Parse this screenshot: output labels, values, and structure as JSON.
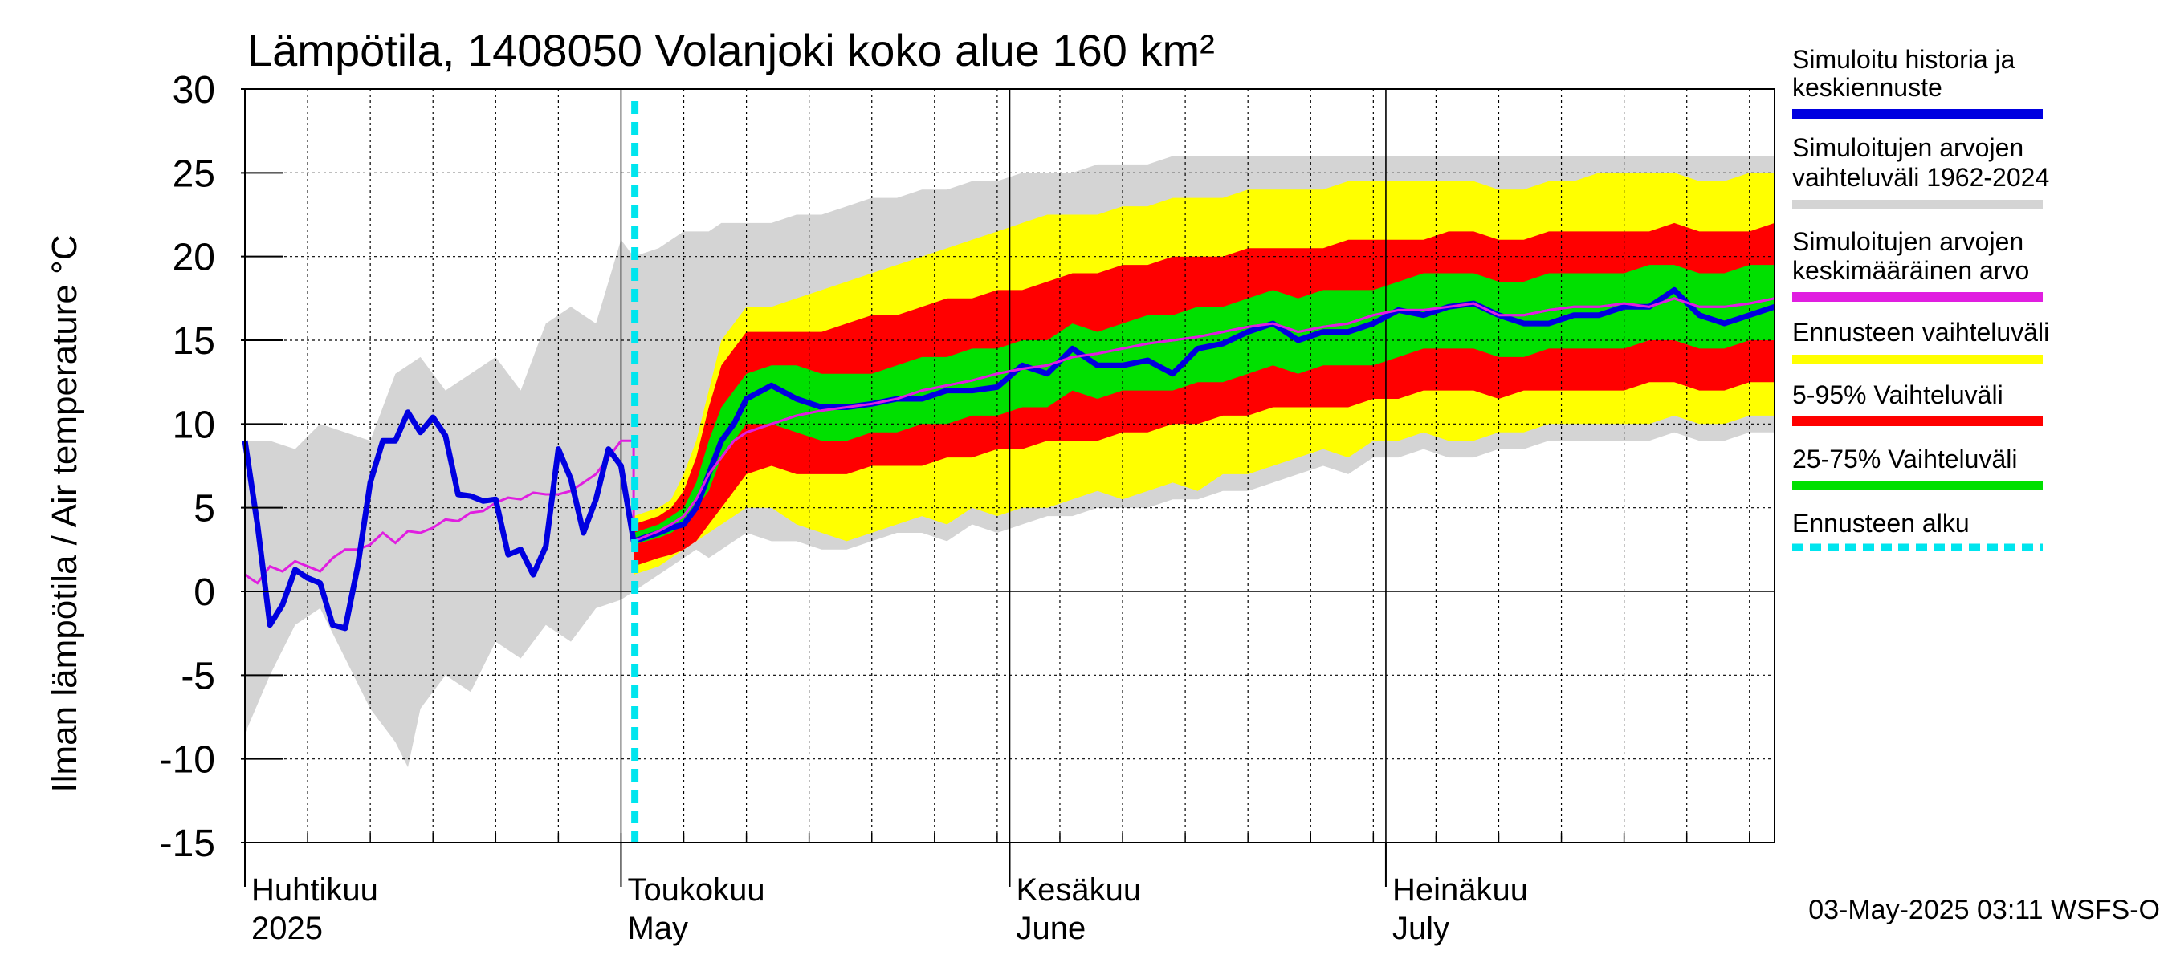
{
  "chart_data": {
    "type": "area",
    "title": "Lämpötila, 1408050 Volanjoki koko alue 160 km²",
    "ylabel": "Ilman lämpötila / Air temperature   °C",
    "ylim": [
      -15,
      30
    ],
    "yticks": [
      30,
      25,
      20,
      15,
      10,
      5,
      0,
      -5,
      -10,
      -15
    ],
    "x_range_days": [
      0,
      122
    ],
    "months": [
      {
        "day": 0,
        "fi": "Huhtikuu",
        "en": "2025"
      },
      {
        "day": 30,
        "fi": "Toukokuu",
        "en": "May"
      },
      {
        "day": 61,
        "fi": "Kesäkuu",
        "en": "June"
      },
      {
        "day": 91,
        "fi": "Heinäkuu",
        "en": "July"
      }
    ],
    "forecast_start_day": 31.1,
    "footer": "03-May-2025 03:11 WSFS-O",
    "legend": [
      {
        "line1": "Simuloitu historia ja",
        "line2": "keskiennuste",
        "color": "#0000e0",
        "dashed": false
      },
      {
        "line1": "Simuloitujen arvojen",
        "line2": "vaihteluväli 1962-2024",
        "color": "#d4d4d4",
        "dashed": false
      },
      {
        "line1": "Simuloitujen arvojen",
        "line2": "keskimääräinen arvo",
        "color": "#e01ee0",
        "dashed": false
      },
      {
        "line1": "Ennusteen vaihteluväli",
        "line2": "",
        "color": "#ffff00",
        "dashed": false
      },
      {
        "line1": "5-95% Vaihteluväli",
        "line2": "",
        "color": "#ff0000",
        "dashed": false
      },
      {
        "line1": "25-75% Vaihteluväli",
        "line2": "",
        "color": "#00e000",
        "dashed": false
      },
      {
        "line1": "Ennusteen alku",
        "line2": "",
        "color": "#00e5ee",
        "dashed": true
      }
    ],
    "series": {
      "history_range_lower": [
        [
          0,
          -8.5
        ],
        [
          2,
          -5
        ],
        [
          4,
          -2
        ],
        [
          6,
          -1
        ],
        [
          8,
          -4
        ],
        [
          10,
          -7
        ],
        [
          12,
          -9
        ],
        [
          13,
          -10.5
        ],
        [
          14,
          -7
        ],
        [
          16,
          -5
        ],
        [
          18,
          -6
        ],
        [
          20,
          -3
        ],
        [
          22,
          -4
        ],
        [
          24,
          -2
        ],
        [
          26,
          -3
        ],
        [
          28,
          -1
        ],
        [
          30,
          -0.5
        ],
        [
          31,
          0
        ]
      ],
      "history_range_upper": [
        [
          0,
          9
        ],
        [
          2,
          9
        ],
        [
          4,
          8.5
        ],
        [
          6,
          10
        ],
        [
          8,
          9.5
        ],
        [
          10,
          9
        ],
        [
          12,
          13
        ],
        [
          14,
          14
        ],
        [
          16,
          12
        ],
        [
          18,
          13
        ],
        [
          20,
          14
        ],
        [
          22,
          12
        ],
        [
          24,
          16
        ],
        [
          26,
          17
        ],
        [
          28,
          16
        ],
        [
          30,
          21
        ],
        [
          31,
          20
        ]
      ],
      "history_mean": [
        [
          0,
          1
        ],
        [
          1,
          0.5
        ],
        [
          2,
          1.5
        ],
        [
          3,
          1.2
        ],
        [
          4,
          1.8
        ],
        [
          5,
          1.5
        ],
        [
          6,
          1.2
        ],
        [
          7,
          2
        ],
        [
          8,
          2.5
        ],
        [
          9,
          2.5
        ],
        [
          10,
          2.8
        ],
        [
          11,
          3.5
        ],
        [
          12,
          2.9
        ],
        [
          13,
          3.6
        ],
        [
          14,
          3.5
        ],
        [
          15,
          3.8
        ],
        [
          16,
          4.3
        ],
        [
          17,
          4.2
        ],
        [
          18,
          4.7
        ],
        [
          19,
          4.8
        ],
        [
          20,
          5.3
        ],
        [
          21,
          5.6
        ],
        [
          22,
          5.5
        ],
        [
          23,
          5.9
        ],
        [
          24,
          5.8
        ],
        [
          25,
          5.8
        ],
        [
          26,
          6
        ],
        [
          27,
          6.5
        ],
        [
          28,
          7
        ],
        [
          29,
          8
        ],
        [
          30,
          9
        ],
        [
          31,
          9
        ]
      ],
      "simulated_history": [
        [
          0,
          9
        ],
        [
          1,
          4
        ],
        [
          2,
          -2
        ],
        [
          3,
          -0.8
        ],
        [
          4,
          1.3
        ],
        [
          5,
          0.8
        ],
        [
          6,
          0.5
        ],
        [
          7,
          -2
        ],
        [
          8,
          -2.2
        ],
        [
          9,
          1.5
        ],
        [
          10,
          6.5
        ],
        [
          11,
          9
        ],
        [
          12,
          9
        ],
        [
          13,
          10.7
        ],
        [
          14,
          9.5
        ],
        [
          15,
          10.4
        ],
        [
          16,
          9.3
        ],
        [
          17,
          5.8
        ],
        [
          18,
          5.7
        ],
        [
          19,
          5.4
        ],
        [
          20,
          5.5
        ],
        [
          21,
          2.2
        ],
        [
          22,
          2.5
        ],
        [
          23,
          1
        ],
        [
          24,
          2.7
        ],
        [
          25,
          8.5
        ],
        [
          26,
          6.7
        ],
        [
          27,
          3.5
        ],
        [
          28,
          5.5
        ],
        [
          29,
          8.5
        ],
        [
          30,
          7.5
        ],
        [
          31,
          3
        ]
      ],
      "forecast_days": [
        31,
        33,
        34,
        35,
        36,
        37,
        38,
        39,
        40,
        42,
        44,
        46,
        48,
        50,
        52,
        54,
        56,
        58,
        60,
        62,
        64,
        66,
        68,
        70,
        72,
        74,
        76,
        78,
        80,
        82,
        84,
        86,
        88,
        90,
        92,
        94,
        96,
        98,
        100,
        102,
        104,
        106,
        108,
        110,
        112,
        114,
        116,
        118,
        120,
        122
      ],
      "forecast_median": [
        3,
        3.5,
        3.8,
        4,
        5,
        7,
        9,
        10,
        11.5,
        12.3,
        11.5,
        11,
        11,
        11.2,
        11.5,
        11.5,
        12,
        12,
        12.2,
        13.5,
        13,
        14.5,
        13.5,
        13.5,
        13.8,
        13,
        14.5,
        14.8,
        15.5,
        16,
        15,
        15.5,
        15.5,
        16,
        16.8,
        16.5,
        17,
        17.2,
        16.5,
        16,
        16,
        16.5,
        16.5,
        17,
        17,
        18,
        16.5,
        16,
        16.5,
        17
      ],
      "forecast_mean": [
        3,
        3.6,
        4,
        4.5,
        5.5,
        7,
        8,
        9,
        9.5,
        10,
        10.5,
        10.8,
        11,
        11.2,
        11.5,
        12,
        12.3,
        12.6,
        13,
        13.3,
        13.5,
        14,
        14.2,
        14.5,
        14.8,
        15,
        15.2,
        15.5,
        15.8,
        16,
        15.5,
        15.8,
        16,
        16.5,
        16.8,
        16.8,
        17,
        17.2,
        16.5,
        16.5,
        16.8,
        17,
        17,
        17.2,
        17,
        17.5,
        17,
        17,
        17.2,
        17.5
      ],
      "p25": [
        2.8,
        3.2,
        3.5,
        4,
        5,
        6,
        8,
        9,
        10,
        10,
        9.5,
        9,
        9,
        9.5,
        9.5,
        10,
        10,
        10.5,
        10.5,
        11,
        11,
        12,
        11.5,
        12,
        12,
        12,
        12.5,
        12.5,
        13,
        13.5,
        13,
        13.5,
        13.5,
        13.5,
        14,
        14.5,
        14.5,
        14.5,
        14,
        14,
        14.5,
        14.5,
        14.5,
        14.5,
        15,
        15,
        14.5,
        14.5,
        15,
        15
      ],
      "p75": [
        3.5,
        4,
        4.5,
        5,
        6.5,
        9,
        11,
        12,
        13,
        13.5,
        13.5,
        13,
        13,
        13,
        13.5,
        14,
        14,
        14.5,
        14.5,
        15,
        15,
        16,
        15.5,
        16,
        16.5,
        16.5,
        17,
        17,
        17.5,
        18,
        17.5,
        18,
        18,
        18,
        18.5,
        19,
        19,
        19,
        18.5,
        18.5,
        19,
        19,
        19,
        19,
        19.5,
        19.5,
        19,
        19,
        19.5,
        19.5
      ],
      "p5": [
        1.5,
        2,
        2.2,
        2.5,
        3,
        4,
        5,
        6,
        7,
        7.5,
        7,
        7,
        7,
        7.5,
        7.5,
        7.5,
        8,
        8,
        8.5,
        8.5,
        9,
        9,
        9,
        9.5,
        9.5,
        10,
        10,
        10.5,
        10.5,
        11,
        11,
        11,
        11,
        11.5,
        11.5,
        12,
        12,
        12,
        11.5,
        12,
        12,
        12,
        12,
        12,
        12.5,
        12.5,
        12,
        12,
        12.5,
        12.5
      ],
      "p95": [
        4,
        4.5,
        5,
        6,
        8,
        11,
        13.5,
        14.5,
        15.5,
        15.5,
        15.5,
        15.5,
        16,
        16.5,
        16.5,
        17,
        17.5,
        17.5,
        18,
        18,
        18.5,
        19,
        19,
        19.5,
        19.5,
        20,
        20,
        20,
        20.5,
        20.5,
        20.5,
        20.5,
        21,
        21,
        21,
        21,
        21.5,
        21.5,
        21,
        21,
        21.5,
        21.5,
        21.5,
        21.5,
        21.5,
        22,
        21.5,
        21.5,
        21.5,
        22
      ],
      "range_min": [
        1,
        1.5,
        2,
        2.5,
        3,
        3.5,
        4,
        4.5,
        5,
        5,
        4,
        3.5,
        3,
        3.5,
        4,
        4.5,
        4,
        5,
        4.5,
        5,
        5,
        5.5,
        6,
        5.5,
        6,
        6.5,
        6,
        7,
        7,
        7.5,
        8,
        8.5,
        8,
        9,
        9,
        9.5,
        9,
        9,
        9.5,
        9.5,
        10,
        10,
        10,
        10,
        10,
        10.5,
        10,
        10,
        10.5,
        10.5
      ],
      "range_max": [
        4.5,
        5,
        5.5,
        7,
        9,
        12,
        15,
        16,
        17,
        17,
        17.5,
        18,
        18.5,
        19,
        19.5,
        20,
        20.5,
        21,
        21.5,
        22,
        22.5,
        22.5,
        22.5,
        23,
        23,
        23.5,
        23.5,
        23.5,
        24,
        24,
        24,
        24,
        24.5,
        24.5,
        24.5,
        24.5,
        24.5,
        24.5,
        24,
        24,
        24.5,
        24.5,
        25,
        25,
        25,
        25,
        24.5,
        24.5,
        25,
        25
      ],
      "climate_min_forecast": [
        0,
        1,
        1.5,
        2,
        2.5,
        2,
        2.5,
        3,
        3.5,
        3,
        3,
        2.5,
        2.5,
        3,
        3.5,
        3.5,
        3,
        4,
        3.5,
        4,
        4.5,
        4.5,
        5,
        5,
        5,
        5.5,
        5.5,
        6,
        6,
        6.5,
        7,
        7.5,
        7,
        8,
        8,
        8.5,
        8,
        8,
        8.5,
        8.5,
        9,
        9,
        9,
        9,
        9,
        9.5,
        9,
        9,
        9.5,
        9.5
      ],
      "climate_max_forecast": [
        20,
        20.5,
        21,
        21.5,
        21.5,
        21.5,
        22,
        22,
        22,
        22,
        22.5,
        22.5,
        23,
        23.5,
        23.5,
        24,
        24,
        24.5,
        24.5,
        25,
        25,
        25,
        25.5,
        25.5,
        25.5,
        26,
        26,
        26,
        26,
        26,
        26,
        26,
        26,
        26,
        26,
        26,
        26,
        26,
        26,
        26,
        26,
        26,
        26,
        26,
        26,
        26,
        26,
        26,
        26,
        26
      ]
    }
  }
}
